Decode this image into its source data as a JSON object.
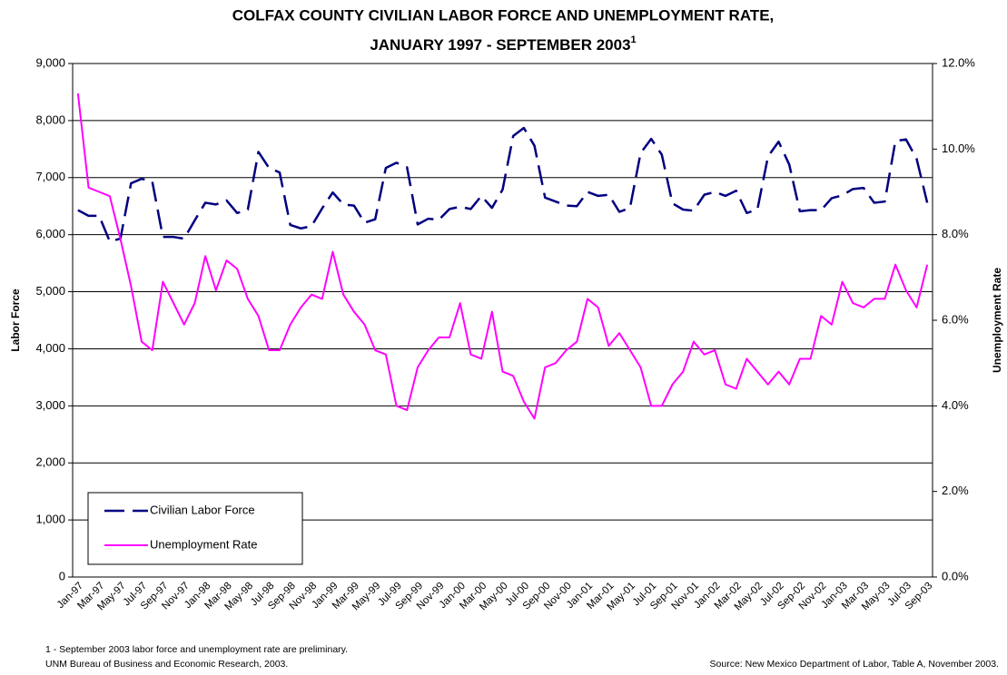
{
  "chart_data": {
    "type": "line",
    "title": "COLFAX COUNTY CIVILIAN LABOR FORCE AND UNEMPLOYMENT RATE,",
    "subtitle": "JANUARY 1997 - SEPTEMBER 2003",
    "subtitle_footnote_marker": "1",
    "y_label": "Labor Force",
    "y2_label": "Unemployment Rate",
    "footnotes": [
      "1 - September 2003 labor force and unemployment rate are preliminary.",
      "UNM Bureau of Business and Economic Research, 2003."
    ],
    "source": "Source:  New Mexico Department of Labor, Table A, November 2003.",
    "categories": [
      "Jan-97",
      null,
      "Mar-97",
      null,
      "May-97",
      null,
      "Jul-97",
      null,
      "Sep-97",
      null,
      "Nov-97",
      null,
      "Jan-98",
      null,
      "Mar-98",
      null,
      "May-98",
      null,
      "Jul-98",
      null,
      "Sep-98",
      null,
      "Nov-98",
      null,
      "Jan-99",
      null,
      "Mar-99",
      null,
      "May-99",
      null,
      "Jul-99",
      null,
      "Sep-99",
      null,
      "Nov-99",
      null,
      "Jan-00",
      null,
      "Mar-00",
      null,
      "May-00",
      null,
      "Jul-00",
      null,
      "Sep-00",
      null,
      "Nov-00",
      null,
      "Jan-01",
      null,
      "Mar-01",
      null,
      "May-01",
      null,
      "Jul-01",
      null,
      "Sep-01",
      null,
      "Nov-01",
      null,
      "Jan-02",
      null,
      "Mar-02",
      null,
      "May-02",
      null,
      "Jul-02",
      null,
      "Sep-02",
      null,
      "Nov-02",
      null,
      "Jan-03",
      null,
      "Mar-03",
      null,
      "May-03",
      null,
      "Jul-03",
      null,
      "Sep-03"
    ],
    "series": [
      {
        "name": "Civilian Labor Force",
        "color": "#000080",
        "dashed": true,
        "axis": "y",
        "values": [
          6430,
          6330,
          6330,
          5880,
          5930,
          6900,
          6980,
          6930,
          5960,
          5960,
          5930,
          6250,
          6560,
          6530,
          6600,
          6380,
          6440,
          7450,
          7170,
          7090,
          6170,
          6110,
          6150,
          6460,
          6740,
          6530,
          6510,
          6210,
          6270,
          7170,
          7260,
          7180,
          6180,
          6280,
          6260,
          6450,
          6490,
          6450,
          6680,
          6470,
          6790,
          7730,
          7870,
          7560,
          6650,
          6580,
          6510,
          6500,
          6750,
          6680,
          6700,
          6400,
          6470,
          7430,
          7680,
          7400,
          6550,
          6440,
          6420,
          6700,
          6750,
          6680,
          6770,
          6380,
          6440,
          7370,
          7630,
          7230,
          6410,
          6430,
          6430,
          6640,
          6690,
          6800,
          6820,
          6560,
          6580,
          7640,
          7670,
          7330,
          6560
        ]
      },
      {
        "name": "Unemployment Rate",
        "color": "#ff00ff",
        "dashed": false,
        "axis": "y2",
        "values": [
          11.3,
          9.1,
          9.0,
          8.9,
          7.9,
          6.8,
          5.5,
          5.3,
          6.9,
          6.4,
          5.9,
          6.4,
          7.5,
          6.7,
          7.4,
          7.2,
          6.5,
          6.1,
          5.3,
          5.3,
          5.9,
          6.3,
          6.6,
          6.5,
          7.6,
          6.6,
          6.2,
          5.9,
          5.3,
          5.2,
          4.0,
          3.9,
          4.9,
          5.3,
          5.6,
          5.6,
          6.4,
          5.2,
          5.1,
          6.2,
          4.8,
          4.7,
          4.1,
          3.7,
          4.9,
          5.0,
          5.3,
          5.5,
          6.5,
          6.3,
          5.4,
          5.7,
          5.3,
          4.9,
          4.0,
          4.0,
          4.5,
          4.8,
          5.5,
          5.2,
          5.3,
          4.5,
          4.4,
          5.1,
          4.8,
          4.5,
          4.8,
          4.5,
          5.1,
          5.1,
          6.1,
          5.9,
          6.9,
          6.4,
          6.3,
          6.5,
          6.5,
          7.3,
          6.7,
          6.3,
          7.3
        ]
      }
    ],
    "ylim": [
      0,
      9000
    ],
    "yticks": [
      0,
      {
        "value": 1000,
        "label": "1,000"
      },
      {
        "value": 2000,
        "label": "2,000"
      },
      {
        "value": 3000,
        "label": "3,000"
      },
      {
        "value": 4000,
        "label": "4,000"
      },
      {
        "value": 5000,
        "label": "5,000"
      },
      {
        "value": 6000,
        "label": "6,000"
      },
      {
        "value": 7000,
        "label": "7,000"
      },
      {
        "value": 8000,
        "label": "8,000"
      },
      {
        "value": 9000,
        "label": "9,000"
      }
    ],
    "y2lim": [
      0,
      12
    ],
    "y2ticks": [
      {
        "value": 0,
        "label": "0.0%"
      },
      {
        "value": 2,
        "label": "2.0%"
      },
      {
        "value": 4,
        "label": "4.0%"
      },
      {
        "value": 6,
        "label": "6.0%"
      },
      {
        "value": 8,
        "label": "8.0%"
      },
      {
        "value": 10,
        "label": "10.0%"
      },
      {
        "value": 12,
        "label": "12.0%"
      }
    ],
    "grid": true,
    "legend": "lower left"
  }
}
